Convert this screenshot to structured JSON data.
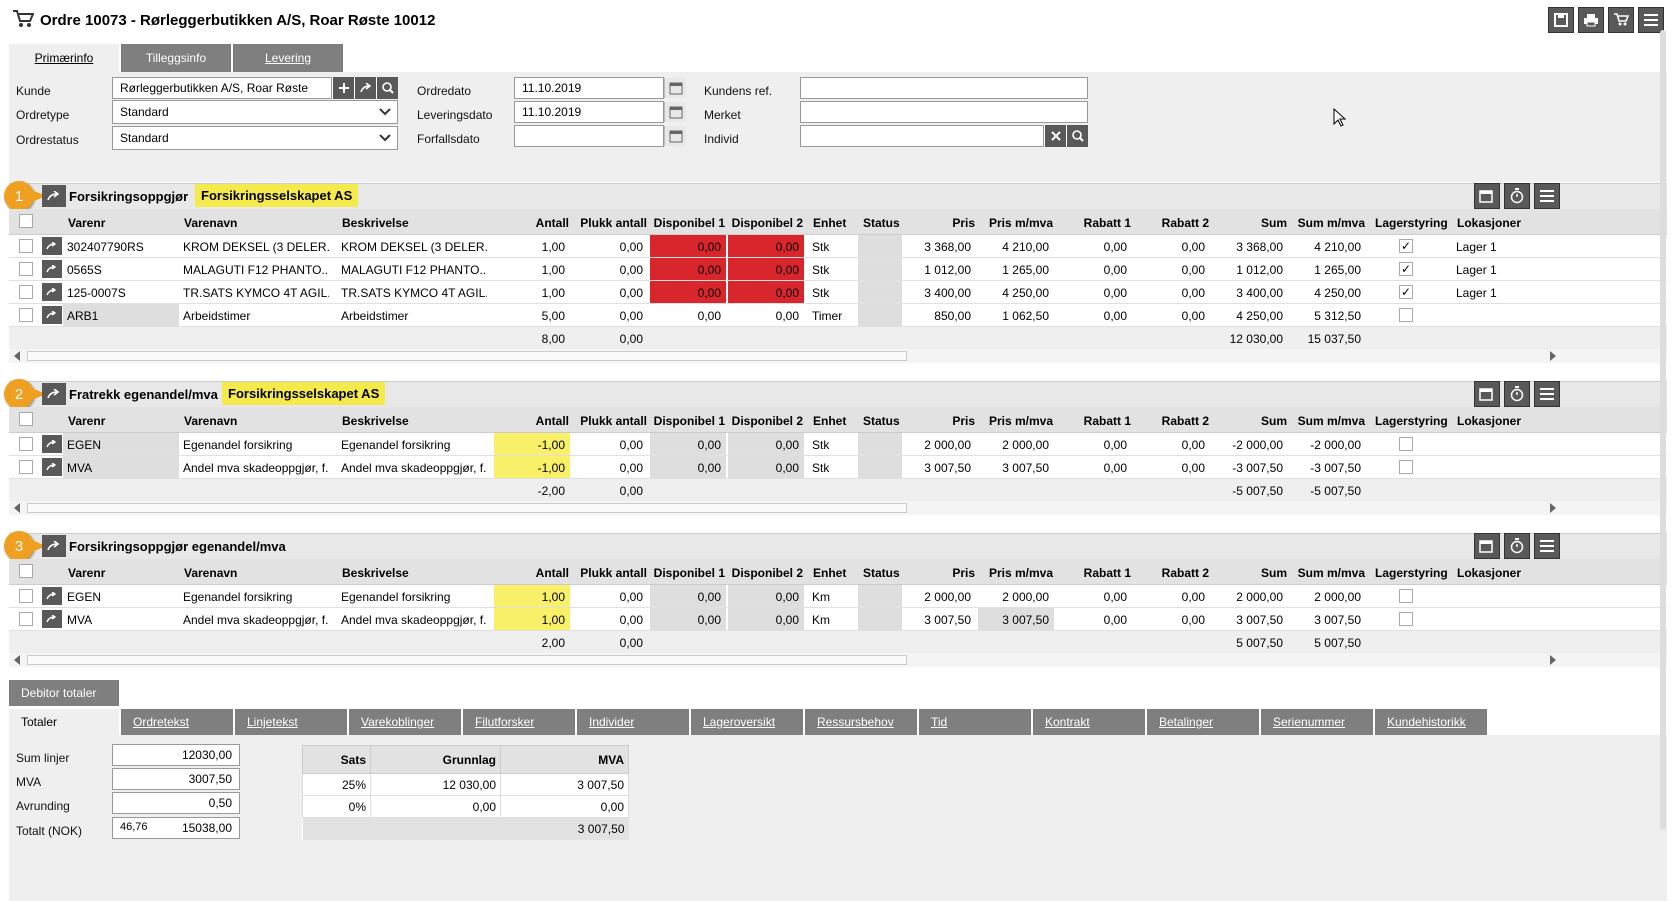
{
  "title": "Ordre 10073 - Rørleggerbutikken A/S, Roar Røste 10012",
  "tabs": [
    "Primærinfo",
    "Tilleggsinfo",
    "Levering"
  ],
  "form": {
    "kunde_label": "Kunde",
    "kunde_value": "Rørleggerbutikken A/S, Roar Røste",
    "ordretype_label": "Ordretype",
    "ordretype_value": "Standard",
    "ordrestatus_label": "Ordrestatus",
    "ordrestatus_value": "Standard",
    "ordredato_label": "Ordredato",
    "ordredato_value": "11.10.2019",
    "leveringsdato_label": "Leveringsdato",
    "leveringsdato_value": "11.10.2019",
    "forfallsdato_label": "Forfallsdato",
    "forfallsdato_value": "",
    "kundensref_label": "Kundens ref.",
    "kundensref_value": "",
    "merket_label": "Merket",
    "merket_value": "",
    "individ_label": "Individ",
    "individ_value": ""
  },
  "columns": [
    "Varenr",
    "Varenavn",
    "Beskrivelse",
    "Antall",
    "Plukk antall",
    "Disponibel 1",
    "Disponibel 2",
    "Enhet",
    "Status",
    "Pris",
    "Pris m/mva",
    "Rabatt 1",
    "Rabatt 2",
    "Sum",
    "Sum m/mva",
    "Lagerstyring",
    "Lokasjoner"
  ],
  "sections": [
    {
      "badge": "1",
      "title": "Forsikringsoppgjør",
      "highlight": "Forsikringsselskapet AS",
      "rows": [
        [
          "302407790RS",
          "KROM DEKSEL (3 DELER...",
          "KROM DEKSEL (3 DELER...",
          "1,00",
          "0,00",
          "0,00",
          "0,00",
          "Stk",
          "",
          "3 368,00",
          "4 210,00",
          "0,00",
          "0,00",
          "3 368,00",
          "4 210,00",
          "✓",
          "Lager 1"
        ],
        [
          "0565S",
          "MALAGUTI F12 PHANTO...",
          "MALAGUTI F12 PHANTO...",
          "1,00",
          "0,00",
          "0,00",
          "0,00",
          "Stk",
          "",
          "1 012,00",
          "1 265,00",
          "0,00",
          "0,00",
          "1 012,00",
          "1 265,00",
          "✓",
          "Lager 1"
        ],
        [
          "125-0007S",
          "TR.SATS KYMCO 4T AGIL...",
          "TR.SATS KYMCO 4T AGIL...",
          "1,00",
          "0,00",
          "0,00",
          "0,00",
          "Stk",
          "",
          "3 400,00",
          "4 250,00",
          "0,00",
          "0,00",
          "3 400,00",
          "4 250,00",
          "✓",
          "Lager 1"
        ],
        [
          "ARB1",
          "Arbeidstimer",
          "Arbeidstimer",
          "5,00",
          "0,00",
          "0,00",
          "0,00",
          "Timer",
          "",
          "850,00",
          "1 062,50",
          "0,00",
          "0,00",
          "4 250,00",
          "5 312,50",
          "",
          ""
        ]
      ],
      "totals": {
        "antall": "8,00",
        "plukk": "0,00",
        "sum": "12 030,00",
        "summva": "15 037,50"
      }
    },
    {
      "badge": "2",
      "title": "Fratrekk egenandel/mva",
      "highlight": "Forsikringsselskapet AS",
      "rows": [
        [
          "EGEN",
          "Egenandel forsikring",
          "Egenandel forsikring",
          "-1,00",
          "0,00",
          "0,00",
          "0,00",
          "Stk",
          "",
          "2 000,00",
          "2 000,00",
          "0,00",
          "0,00",
          "-2 000,00",
          "-2 000,00",
          "",
          ""
        ],
        [
          "MVA",
          "Andel mva skadeoppgjør, f...",
          "Andel mva skadeoppgjør, f...",
          "-1,00",
          "0,00",
          "0,00",
          "0,00",
          "Stk",
          "",
          "3 007,50",
          "3 007,50",
          "0,00",
          "0,00",
          "-3 007,50",
          "-3 007,50",
          "",
          ""
        ]
      ],
      "totals": {
        "antall": "-2,00",
        "plukk": "0,00",
        "sum": "-5 007,50",
        "summva": "-5 007,50"
      }
    },
    {
      "badge": "3",
      "title": "Forsikringsoppgjør egenandel/mva",
      "highlight": "",
      "rows": [
        [
          "EGEN",
          "Egenandel forsikring",
          "Egenandel forsikring",
          "1,00",
          "0,00",
          "0,00",
          "0,00",
          "Km",
          "",
          "2 000,00",
          "2 000,00",
          "0,00",
          "0,00",
          "2 000,00",
          "2 000,00",
          "",
          ""
        ],
        [
          "MVA",
          "Andel mva skadeoppgjør, f...",
          "Andel mva skadeoppgjør, f...",
          "1,00",
          "0,00",
          "0,00",
          "0,00",
          "Km",
          "",
          "3 007,50",
          "3 007,50",
          "0,00",
          "0,00",
          "3 007,50",
          "3 007,50",
          "",
          ""
        ]
      ],
      "totals": {
        "antall": "2,00",
        "plukk": "0,00",
        "sum": "5 007,50",
        "summva": "5 007,50"
      }
    }
  ],
  "debitor_tab": "Debitor totaler",
  "bottom_tabs": [
    "Totaler",
    "Ordretekst",
    "Linjetekst",
    "Varekoblinger",
    "Filutforsker",
    "Individer",
    "Lageroversikt",
    "Ressursbehov",
    "Tid",
    "Kontrakt",
    "Betalinger",
    "Serienummer",
    "Kundehistorikk"
  ],
  "totals": {
    "sum_linjer_label": "Sum linjer",
    "sum_linjer": "12030,00",
    "mva_label": "MVA",
    "mva": "3007,50",
    "avrunding_label": "Avrunding",
    "avrunding": "0,50",
    "totalt_label": "Totalt (NOK)",
    "totalt_small": "46,76",
    "totalt": "15038,00"
  },
  "vat_table": {
    "headers": [
      "Sats",
      "Grunnlag",
      "MVA"
    ],
    "rows": [
      [
        "25%",
        "12 030,00",
        "3 007,50"
      ],
      [
        "0%",
        "0,00",
        "0,00"
      ]
    ],
    "total": "3 007,50"
  },
  "colors": {
    "header_dark": "#595959",
    "tab_grey": "#7f7f7f",
    "badge": "#f0a020",
    "highlight": "#f5ea4b",
    "red": "#d9262c",
    "yellow": "#f9f06a"
  }
}
